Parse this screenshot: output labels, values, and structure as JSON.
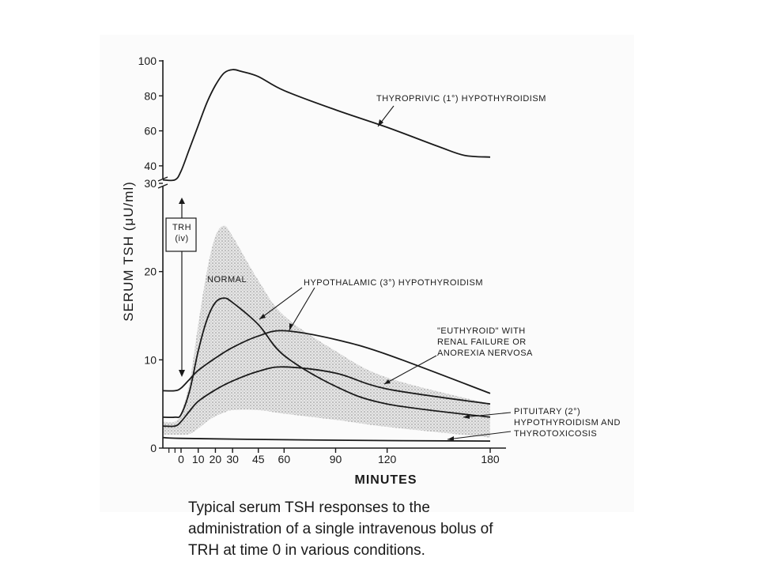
{
  "chart_data": {
    "type": "line",
    "title": "",
    "xlabel": "MINUTES",
    "ylabel": "SERUM TSH (μU/ml)",
    "x_ticks": [
      0,
      10,
      20,
      30,
      45,
      60,
      90,
      120,
      180
    ],
    "y_ticks_lower": [
      0,
      10,
      20,
      30
    ],
    "y_ticks_upper": [
      40,
      60,
      80,
      100
    ],
    "xlim": [
      -15,
      180
    ],
    "ylim_lower": [
      0,
      30
    ],
    "ylim_upper": [
      30,
      100
    ],
    "broken_y_axis": true,
    "grid": false,
    "normal_band": {
      "label": "NORMAL",
      "x": [
        -15,
        -5,
        0,
        5,
        10,
        15,
        20,
        25,
        30,
        45,
        60,
        90,
        120,
        180
      ],
      "upper": [
        3,
        3,
        4,
        7.5,
        14,
        20,
        24,
        25.2,
        24,
        19,
        15,
        11,
        8,
        5
      ],
      "lower": [
        1.5,
        1.5,
        1.5,
        1.6,
        2.2,
        3.0,
        3.6,
        4.0,
        4.3,
        4.3,
        3.9,
        3.2,
        2.4,
        1.2
      ]
    },
    "series": [
      {
        "name": "THYROPRIVIC (1°) HYPOTHYROIDISM",
        "x": [
          -15,
          -5,
          0,
          5,
          10,
          15,
          20,
          25,
          30,
          35,
          45,
          60,
          90,
          120,
          150,
          165,
          180
        ],
        "y": [
          32,
          32,
          37,
          50,
          63,
          76,
          86,
          93,
          95,
          94,
          91,
          83,
          72,
          62,
          51,
          46,
          45
        ]
      },
      {
        "name": "NORMAL",
        "x": [
          -15,
          -5,
          0,
          5,
          10,
          15,
          20,
          25,
          30,
          45,
          60,
          90,
          120,
          180
        ],
        "y": [
          3.5,
          3.5,
          3.8,
          6.5,
          11,
          14.5,
          16.5,
          17.0,
          16.5,
          14,
          10.5,
          7,
          5,
          3.5
        ]
      },
      {
        "name": "HYPOTHALAMIC (3°) HYPOTHYROIDISM",
        "x": [
          -15,
          -5,
          0,
          5,
          10,
          20,
          30,
          45,
          60,
          90,
          120,
          180
        ],
        "y": [
          2.5,
          2.5,
          3.0,
          4.2,
          5.3,
          6.6,
          7.6,
          8.7,
          9.2,
          8.5,
          6.7,
          5.0
        ]
      },
      {
        "name": "\"EUTHYROID\" WITH RENAL FAILURE OR ANOREXIA NERVOSA",
        "x": [
          -15,
          -5,
          0,
          5,
          10,
          20,
          30,
          45,
          60,
          90,
          120,
          180
        ],
        "y": [
          6.5,
          6.5,
          6.8,
          7.8,
          8.8,
          10.2,
          11.4,
          12.7,
          13.3,
          12.3,
          10.6,
          6.2
        ]
      },
      {
        "name": "PITUITARY (2°) HYPOTHYROIDISM AND THYROTOXICOSIS",
        "x": [
          -15,
          0,
          60,
          120,
          180
        ],
        "y": [
          1.2,
          1.1,
          0.95,
          0.85,
          0.8
        ]
      }
    ],
    "annotations": [
      {
        "lines": [
          "THYROPRIVIC (1°) HYPOTHYROIDISM"
        ]
      },
      {
        "lines": [
          "NORMAL"
        ]
      },
      {
        "lines": [
          "HYPOTHALAMIC (3°) HYPOTHYROIDISM"
        ]
      },
      {
        "lines": [
          "\"EUTHYROID\" WITH",
          "RENAL FAILURE  OR",
          "ANOREXIA NERVOSA"
        ]
      },
      {
        "lines": [
          "PITUITARY (2°)",
          "HYPOTHYROIDISM AND",
          "THYROTOXICOSIS"
        ]
      },
      {
        "lines": [
          "TRH",
          "(iv)"
        ]
      }
    ]
  },
  "caption": {
    "lines": [
      "Typical serum TSH responses to the",
      "administration of a single intravenous bolus of",
      "TRH at time 0 in various conditions."
    ]
  }
}
